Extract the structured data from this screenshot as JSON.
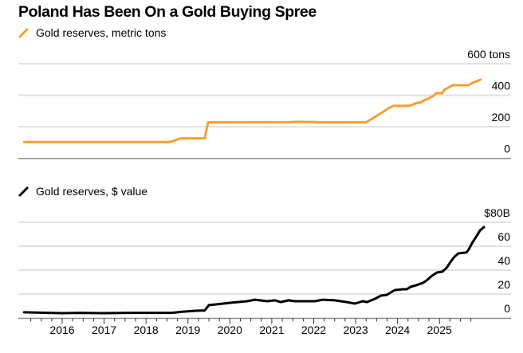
{
  "title": "Poland Has Been On a Gold Buying Spree",
  "chart_data": [
    {
      "type": "line",
      "title": "Poland Has Been On a Gold Buying Spree",
      "legend": [
        {
          "label": "Gold reserves, metric tons",
          "color": "#f5a035"
        }
      ],
      "legend_placement": "top-left",
      "xlabel": "",
      "ylabel": "",
      "ylim": [
        0,
        600
      ],
      "y_ticks": [
        0,
        200,
        400,
        600
      ],
      "y_tick_labels": [
        "0",
        "200",
        "400",
        "600 tons"
      ],
      "grid": true,
      "series": [
        {
          "name": "Gold reserves, metric tons",
          "color": "#f5a035",
          "x": [
            2015.09,
            2018.55,
            2018.66,
            2018.83,
            2019.4,
            2019.48,
            2021.46,
            2021.59,
            2022.03,
            2022.12,
            2023.25,
            2023.46,
            2023.65,
            2023.78,
            2023.91,
            2024.27,
            2024.35,
            2024.44,
            2024.56,
            2024.65,
            2024.73,
            2024.79,
            2024.84,
            2024.92,
            2025.07,
            2025.11,
            2025.21,
            2025.32,
            2025.7,
            2025.79,
            2025.89,
            2025.98
          ],
          "y": [
            103,
            103,
            110,
            126,
            126,
            228,
            229,
            231,
            230,
            228,
            228,
            262,
            293,
            318,
            333,
            333,
            338,
            350,
            355,
            370,
            378,
            388,
            393,
            413,
            413,
            433,
            448,
            464,
            464,
            479,
            489,
            499
          ]
        }
      ]
    },
    {
      "type": "line",
      "title": "",
      "legend": [
        {
          "label": "Gold reserves, $ value",
          "color": "#000000"
        }
      ],
      "legend_placement": "top-left",
      "xlabel": "",
      "ylabel": "",
      "ylim": [
        0,
        80
      ],
      "y_ticks": [
        0,
        20,
        40,
        60,
        80
      ],
      "y_tick_labels": [
        "0",
        "20",
        "40",
        "60",
        "$80B"
      ],
      "x_ticks": [
        2016,
        2017,
        2018,
        2019,
        2020,
        2021,
        2022,
        2023,
        2024,
        2025
      ],
      "x_tick_labels": [
        "2016",
        "2017",
        "2018",
        "2019",
        "2020",
        "2021",
        "2022",
        "2023",
        "2024",
        "2025"
      ],
      "xlim": [
        2014.9,
        2026.5
      ],
      "grid": true,
      "series": [
        {
          "name": "Gold reserves, $ value",
          "color": "#000000",
          "x": [
            2015.09,
            2015.66,
            2016.0,
            2016.42,
            2016.99,
            2017.56,
            2018.32,
            2018.61,
            2018.89,
            2019.18,
            2019.4,
            2019.5,
            2019.65,
            2020.03,
            2020.41,
            2020.6,
            2020.89,
            2021.08,
            2021.21,
            2021.4,
            2021.55,
            2022.03,
            2022.22,
            2022.5,
            2022.79,
            2022.98,
            2023.17,
            2023.27,
            2023.46,
            2023.61,
            2023.74,
            2023.93,
            2024.12,
            2024.22,
            2024.31,
            2024.44,
            2024.6,
            2024.69,
            2024.82,
            2024.94,
            2025.07,
            2025.17,
            2025.26,
            2025.36,
            2025.45,
            2025.64,
            2025.7,
            2025.78,
            2025.89,
            2025.97,
            2026.06
          ],
          "y": [
            4.7,
            4.3,
            4.0,
            4.3,
            4.0,
            4.3,
            4.3,
            4.3,
            5.3,
            6.0,
            6.3,
            10.7,
            11.3,
            12.7,
            14.0,
            15.3,
            14.0,
            14.7,
            13.3,
            14.7,
            14.0,
            14.0,
            15.3,
            14.7,
            13.3,
            12.0,
            14.0,
            13.3,
            16.0,
            18.7,
            19.3,
            23.3,
            24.0,
            24.0,
            26.0,
            27.3,
            29.3,
            31.3,
            35.3,
            38.0,
            38.7,
            42.0,
            46.7,
            51.3,
            54.0,
            54.7,
            57.3,
            62.7,
            68.7,
            73.3,
            76.0
          ]
        }
      ]
    }
  ]
}
